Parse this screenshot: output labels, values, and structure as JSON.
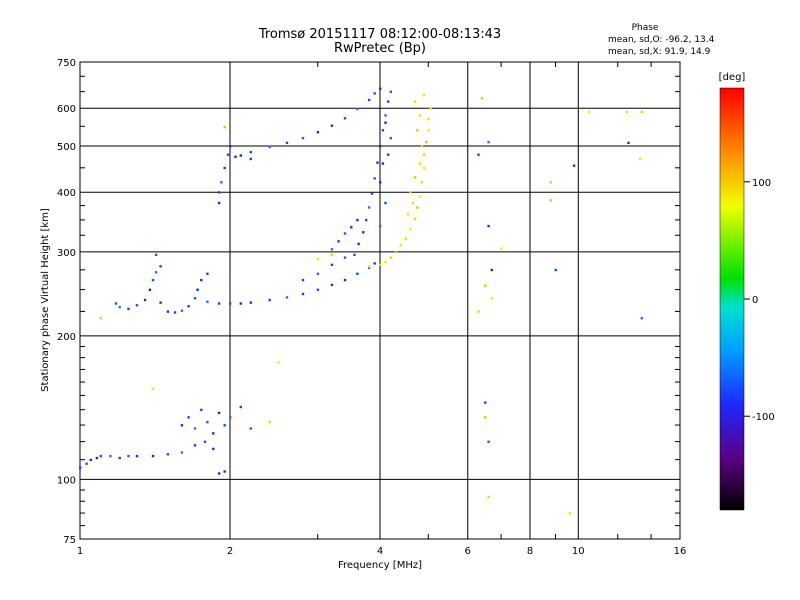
{
  "chart_data": {
    "type": "scatter",
    "title": "Tromsø 20151117 08:12:00-08:13:43",
    "subtitle": "RwPretec (Bp)",
    "xlabel": "Frequency [MHz]",
    "ylabel": "Stationary phase Virtual Height [km]",
    "x_scale": "log",
    "y_scale": "log",
    "xlim": [
      1,
      16
    ],
    "ylim": [
      75,
      750
    ],
    "x_ticks": [
      "1",
      "2",
      "4",
      "6",
      "8",
      "10",
      "16"
    ],
    "x_tick_values": [
      1,
      2,
      4,
      6,
      8,
      10,
      16
    ],
    "y_ticks": [
      "75",
      "100",
      "200",
      "300",
      "400",
      "500",
      "600",
      "750"
    ],
    "y_tick_values": [
      75,
      100,
      200,
      300,
      400,
      500,
      600,
      750
    ],
    "grid": true,
    "phase_legend": {
      "title": "Phase",
      "line_o": "mean, sd,O: -96.2, 13.4",
      "line_x": "mean, sd,X:  91.9, 14.9"
    },
    "colorbar": {
      "label": "[deg]",
      "range": [
        -180,
        180
      ],
      "ticks": [
        "100",
        "0",
        "-100"
      ],
      "tick_values": [
        100,
        0,
        -100
      ]
    },
    "series": [
      {
        "description": "O-mode traces (blue/purple, phase ~ -96)",
        "phase_mean": -96.2,
        "points": [
          [
            1.0,
            106
          ],
          [
            1.03,
            108
          ],
          [
            1.05,
            110
          ],
          [
            1.08,
            111
          ],
          [
            1.1,
            112
          ],
          [
            1.15,
            112
          ],
          [
            1.2,
            111
          ],
          [
            1.25,
            112
          ],
          [
            1.3,
            112
          ],
          [
            1.4,
            112
          ],
          [
            1.5,
            113
          ],
          [
            1.6,
            114
          ],
          [
            1.7,
            118
          ],
          [
            1.78,
            120
          ],
          [
            1.85,
            116
          ],
          [
            1.6,
            130
          ],
          [
            1.65,
            135
          ],
          [
            1.7,
            128
          ],
          [
            1.75,
            140
          ],
          [
            1.8,
            132
          ],
          [
            1.85,
            125
          ],
          [
            1.9,
            138
          ],
          [
            1.95,
            130
          ],
          [
            2.0,
            135
          ],
          [
            2.1,
            142
          ],
          [
            2.2,
            128
          ],
          [
            1.9,
            103
          ],
          [
            1.95,
            104
          ],
          [
            1.18,
            234
          ],
          [
            1.2,
            230
          ],
          [
            1.25,
            228
          ],
          [
            1.3,
            232
          ],
          [
            1.35,
            238
          ],
          [
            1.38,
            250
          ],
          [
            1.4,
            262
          ],
          [
            1.42,
            272
          ],
          [
            1.45,
            280
          ],
          [
            1.42,
            296
          ],
          [
            1.45,
            235
          ],
          [
            1.5,
            225
          ],
          [
            1.55,
            224
          ],
          [
            1.6,
            226
          ],
          [
            1.65,
            231
          ],
          [
            1.7,
            240
          ],
          [
            1.72,
            250
          ],
          [
            1.75,
            262
          ],
          [
            1.8,
            270
          ],
          [
            1.8,
            236
          ],
          [
            1.9,
            234
          ],
          [
            2.0,
            234
          ],
          [
            2.1,
            234
          ],
          [
            2.2,
            235
          ],
          [
            2.4,
            238
          ],
          [
            2.6,
            241
          ],
          [
            2.8,
            245
          ],
          [
            3.0,
            250
          ],
          [
            3.2,
            256
          ],
          [
            3.4,
            262
          ],
          [
            3.6,
            270
          ],
          [
            3.8,
            278
          ],
          [
            3.9,
            284
          ],
          [
            3.55,
            296
          ],
          [
            3.62,
            312
          ],
          [
            3.7,
            330
          ],
          [
            3.75,
            350
          ],
          [
            3.8,
            372
          ],
          [
            3.85,
            398
          ],
          [
            3.9,
            428
          ],
          [
            3.95,
            462
          ],
          [
            4.0,
            500
          ],
          [
            4.05,
            540
          ],
          [
            4.1,
            580
          ],
          [
            4.15,
            620
          ],
          [
            4.2,
            650
          ],
          [
            4.0,
            420
          ],
          [
            4.05,
            460
          ],
          [
            4.1,
            380
          ],
          [
            4.0,
            340
          ],
          [
            4.15,
            480
          ],
          [
            4.2,
            520
          ],
          [
            4.1,
            560
          ],
          [
            2.1,
            478
          ],
          [
            2.2,
            486
          ],
          [
            2.4,
            498
          ],
          [
            2.6,
            508
          ],
          [
            2.8,
            520
          ],
          [
            3.0,
            535
          ],
          [
            3.2,
            552
          ],
          [
            3.4,
            572
          ],
          [
            3.6,
            598
          ],
          [
            3.8,
            625
          ],
          [
            3.9,
            645
          ],
          [
            4.0,
            660
          ],
          [
            1.9,
            380
          ],
          [
            1.9,
            400
          ],
          [
            1.92,
            420
          ],
          [
            1.95,
            450
          ],
          [
            1.98,
            480
          ],
          [
            2.0,
            500
          ],
          [
            2.05,
            475
          ],
          [
            2.2,
            470
          ],
          [
            3.2,
            304
          ],
          [
            3.3,
            316
          ],
          [
            3.4,
            328
          ],
          [
            3.5,
            338
          ],
          [
            3.6,
            350
          ],
          [
            2.8,
            262
          ],
          [
            3.0,
            270
          ],
          [
            3.2,
            282
          ],
          [
            3.4,
            292
          ],
          [
            6.6,
            340
          ],
          [
            6.7,
            275
          ],
          [
            9.0,
            275
          ],
          [
            13.4,
            218
          ],
          [
            6.5,
            145
          ],
          [
            6.6,
            120
          ],
          [
            9.8,
            455
          ],
          [
            12.6,
            508
          ],
          [
            6.3,
            480
          ],
          [
            6.6,
            510
          ]
        ]
      },
      {
        "description": "X-mode traces (yellow/orange, phase ~ 92)",
        "phase_mean": 91.9,
        "points": [
          [
            3.8,
            280
          ],
          [
            4.0,
            282
          ],
          [
            4.1,
            286
          ],
          [
            4.2,
            292
          ],
          [
            4.3,
            300
          ],
          [
            4.4,
            310
          ],
          [
            4.5,
            320
          ],
          [
            4.6,
            335
          ],
          [
            4.7,
            352
          ],
          [
            4.75,
            372
          ],
          [
            4.8,
            392
          ],
          [
            4.85,
            420
          ],
          [
            4.9,
            450
          ],
          [
            4.9,
            480
          ],
          [
            4.95,
            510
          ],
          [
            5.0,
            540
          ],
          [
            5.0,
            570
          ],
          [
            5.05,
            600
          ],
          [
            4.6,
            400
          ],
          [
            4.7,
            430
          ],
          [
            4.8,
            460
          ],
          [
            4.85,
            500
          ],
          [
            4.55,
            360
          ],
          [
            4.65,
            380
          ],
          [
            4.75,
            540
          ],
          [
            4.8,
            580
          ],
          [
            4.7,
            620
          ],
          [
            4.9,
            640
          ],
          [
            1.1,
            218
          ],
          [
            1.95,
            548
          ],
          [
            2.5,
            176
          ],
          [
            2.4,
            132
          ],
          [
            1.4,
            155
          ],
          [
            6.4,
            630
          ],
          [
            6.5,
            255
          ],
          [
            6.7,
            240
          ],
          [
            6.3,
            225
          ],
          [
            7.0,
            305
          ],
          [
            8.8,
            420
          ],
          [
            8.8,
            385
          ],
          [
            10.5,
            590
          ],
          [
            12.5,
            590
          ],
          [
            13.3,
            470
          ],
          [
            13.4,
            590
          ],
          [
            6.5,
            135
          ],
          [
            9.6,
            85
          ],
          [
            6.6,
            92
          ],
          [
            3.0,
            290
          ],
          [
            3.2,
            296
          ]
        ]
      }
    ]
  }
}
